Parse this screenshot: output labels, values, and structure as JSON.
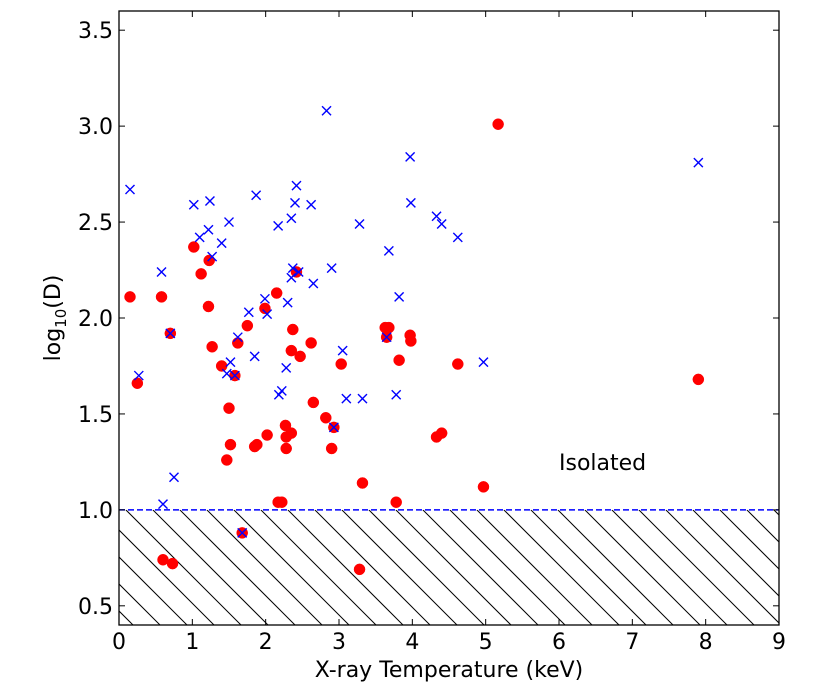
{
  "chart_data": {
    "type": "scatter",
    "title": "",
    "xlabel": "X-ray Temperature (keV)",
    "ylabel_base": "log",
    "ylabel_sub": "10",
    "ylabel_suffix": "(D)",
    "xlim": [
      0,
      9
    ],
    "ylim": [
      0.4,
      3.6
    ],
    "xticks": [
      0,
      1,
      2,
      3,
      4,
      5,
      6,
      7,
      8,
      9
    ],
    "xtick_labels": [
      "0",
      "1",
      "2",
      "3",
      "4",
      "5",
      "6",
      "7",
      "8",
      "9"
    ],
    "yticks": [
      0.5,
      1.0,
      1.5,
      2.0,
      2.5,
      3.0,
      3.5
    ],
    "ytick_labels": [
      "0.5",
      "1.0",
      "1.5",
      "2.0",
      "2.5",
      "3.0",
      "3.5"
    ],
    "threshold": {
      "y": 1.0,
      "label": "Isolated",
      "label_x": 6.0,
      "label_y": 1.25,
      "hatched_below": true
    },
    "colors": {
      "circle": "#ff0000",
      "cross": "#0000ff",
      "threshold": "#0000ff"
    },
    "series": [
      {
        "name": "red circles",
        "marker": "circle",
        "points": [
          [
            0.15,
            2.11
          ],
          [
            0.25,
            1.66
          ],
          [
            0.58,
            2.11
          ],
          [
            0.6,
            0.74
          ],
          [
            0.7,
            1.92
          ],
          [
            0.73,
            0.72
          ],
          [
            1.02,
            2.37
          ],
          [
            1.12,
            2.23
          ],
          [
            1.22,
            2.06
          ],
          [
            1.23,
            2.3
          ],
          [
            1.27,
            1.85
          ],
          [
            1.4,
            1.75
          ],
          [
            1.47,
            1.26
          ],
          [
            1.5,
            1.53
          ],
          [
            1.52,
            1.34
          ],
          [
            1.58,
            1.7
          ],
          [
            1.62,
            1.87
          ],
          [
            1.68,
            0.88
          ],
          [
            1.75,
            1.96
          ],
          [
            1.85,
            1.33
          ],
          [
            1.88,
            1.34
          ],
          [
            1.99,
            2.05
          ],
          [
            2.02,
            1.39
          ],
          [
            2.15,
            2.13
          ],
          [
            2.17,
            1.04
          ],
          [
            2.22,
            1.04
          ],
          [
            2.27,
            1.44
          ],
          [
            2.28,
            1.38
          ],
          [
            2.28,
            1.32
          ],
          [
            2.35,
            1.4
          ],
          [
            2.35,
            1.83
          ],
          [
            2.37,
            1.94
          ],
          [
            2.42,
            2.24
          ],
          [
            2.47,
            1.8
          ],
          [
            2.62,
            1.87
          ],
          [
            2.65,
            1.56
          ],
          [
            2.82,
            1.48
          ],
          [
            2.9,
            1.32
          ],
          [
            2.93,
            1.43
          ],
          [
            3.03,
            1.76
          ],
          [
            3.32,
            1.14
          ],
          [
            3.28,
            0.69
          ],
          [
            3.63,
            1.95
          ],
          [
            3.65,
            1.9
          ],
          [
            3.68,
            1.95
          ],
          [
            3.78,
            1.04
          ],
          [
            3.82,
            1.78
          ],
          [
            3.97,
            1.91
          ],
          [
            3.98,
            1.88
          ],
          [
            4.33,
            1.38
          ],
          [
            4.4,
            1.4
          ],
          [
            4.62,
            1.76
          ],
          [
            4.97,
            1.12
          ],
          [
            5.17,
            3.01
          ],
          [
            7.9,
            1.68
          ]
        ]
      },
      {
        "name": "blue crosses",
        "marker": "x",
        "points": [
          [
            0.15,
            2.67
          ],
          [
            0.27,
            1.7
          ],
          [
            0.58,
            2.24
          ],
          [
            0.6,
            1.03
          ],
          [
            0.7,
            1.92
          ],
          [
            0.75,
            1.17
          ],
          [
            1.02,
            2.59
          ],
          [
            1.1,
            2.42
          ],
          [
            1.22,
            2.46
          ],
          [
            1.24,
            2.61
          ],
          [
            1.27,
            2.32
          ],
          [
            1.4,
            2.39
          ],
          [
            1.47,
            1.71
          ],
          [
            1.5,
            2.5
          ],
          [
            1.52,
            1.77
          ],
          [
            1.58,
            1.7
          ],
          [
            1.62,
            1.9
          ],
          [
            1.68,
            0.88
          ],
          [
            1.77,
            2.03
          ],
          [
            1.85,
            1.8
          ],
          [
            1.87,
            2.64
          ],
          [
            1.99,
            2.1
          ],
          [
            2.02,
            2.02
          ],
          [
            2.17,
            2.48
          ],
          [
            2.18,
            1.6
          ],
          [
            2.22,
            1.62
          ],
          [
            2.28,
            1.74
          ],
          [
            2.3,
            2.08
          ],
          [
            2.35,
            2.21
          ],
          [
            2.35,
            2.52
          ],
          [
            2.37,
            2.26
          ],
          [
            2.4,
            2.6
          ],
          [
            2.42,
            2.69
          ],
          [
            2.45,
            2.24
          ],
          [
            2.62,
            2.59
          ],
          [
            2.65,
            2.18
          ],
          [
            2.83,
            3.08
          ],
          [
            2.9,
            2.26
          ],
          [
            2.93,
            1.43
          ],
          [
            3.05,
            1.83
          ],
          [
            3.1,
            1.58
          ],
          [
            3.28,
            2.49
          ],
          [
            3.32,
            1.58
          ],
          [
            3.65,
            1.9
          ],
          [
            3.68,
            2.35
          ],
          [
            3.78,
            1.6
          ],
          [
            3.82,
            2.11
          ],
          [
            3.97,
            2.84
          ],
          [
            3.98,
            2.6
          ],
          [
            4.33,
            2.53
          ],
          [
            4.4,
            2.49
          ],
          [
            4.62,
            2.42
          ],
          [
            4.97,
            1.77
          ],
          [
            7.9,
            2.81
          ]
        ]
      }
    ]
  }
}
